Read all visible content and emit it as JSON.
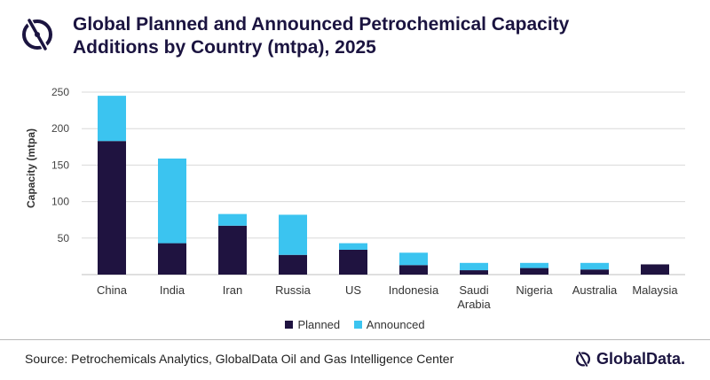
{
  "title": "Global Planned and Announced Petrochemical Capacity Additions by Country (mtpa), 2025",
  "source": "Source: Petrochemicals Analytics, GlobalData Oil and Gas Intelligence Center",
  "brand": "GlobalData.",
  "colors": {
    "planned": "#1f1340",
    "announced": "#3bc4f0",
    "title": "#1b1440",
    "grid": "#d9d9d9"
  },
  "chart_data": {
    "type": "bar",
    "stacked": true,
    "title": "Global Planned and Announced Petrochemical Capacity Additions by Country (mtpa), 2025",
    "xlabel": "",
    "ylabel": "Capacity (mtpa)",
    "ylim": [
      0,
      250
    ],
    "yticks": [
      50,
      100,
      150,
      200,
      250
    ],
    "grid": true,
    "legend_position": "bottom",
    "categories": [
      [
        "China"
      ],
      [
        "India"
      ],
      [
        "Iran"
      ],
      [
        "Russia"
      ],
      [
        "US"
      ],
      [
        "Indonesia"
      ],
      [
        "Saudi",
        "Arabia"
      ],
      [
        "Nigeria"
      ],
      [
        "Australia"
      ],
      [
        "Malaysia"
      ]
    ],
    "series": [
      {
        "name": "Planned",
        "values": [
          183,
          43,
          67,
          27,
          34,
          13,
          6,
          9,
          7,
          14
        ]
      },
      {
        "name": "Announced",
        "values": [
          62,
          116,
          16,
          55,
          9,
          17,
          10,
          7,
          9,
          0
        ]
      }
    ]
  }
}
